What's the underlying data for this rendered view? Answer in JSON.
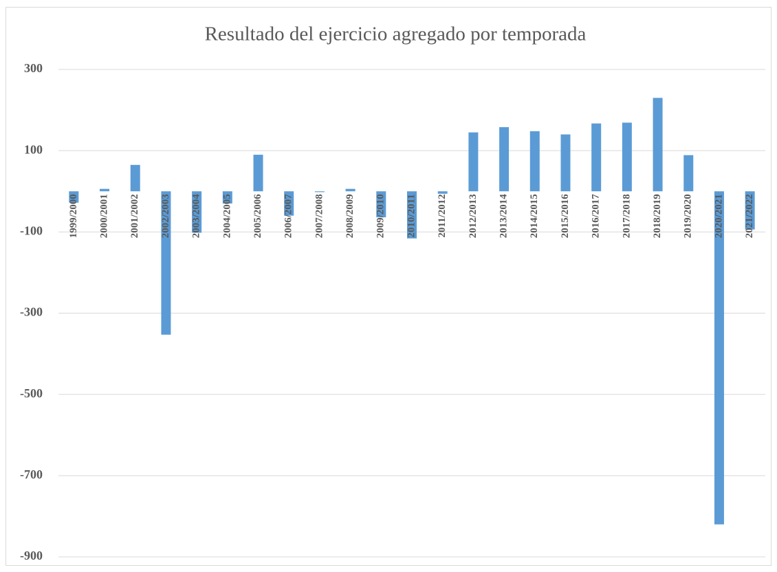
{
  "chart_data": {
    "type": "bar",
    "title": "Resultado del ejercicio agregado por temporada",
    "categories": [
      "1999/2000",
      "2000/2001",
      "2001/2002",
      "2002/2003",
      "2003/2004",
      "2004/2005",
      "2005/2006",
      "2006/2007",
      "2007/2008",
      "2008/2009",
      "2009/2010",
      "2010/2011",
      "2011/2012",
      "2012/2013",
      "2013/2014",
      "2014/2015",
      "2015/2016",
      "2016/2017",
      "2017/2018",
      "2018/2019",
      "2019/2020",
      "2020/2021",
      "2021/2022"
    ],
    "values": [
      -28,
      6,
      65,
      -353,
      -102,
      -30,
      90,
      -60,
      -2,
      6,
      -64,
      -116,
      -6,
      145,
      158,
      148,
      140,
      167,
      169,
      230,
      89,
      -820,
      -94
    ],
    "color": "#5b9bd5",
    "ylim": [
      -900,
      300
    ],
    "yticks": [
      -900,
      -700,
      -500,
      -300,
      -100,
      100,
      300
    ],
    "grid": true
  }
}
